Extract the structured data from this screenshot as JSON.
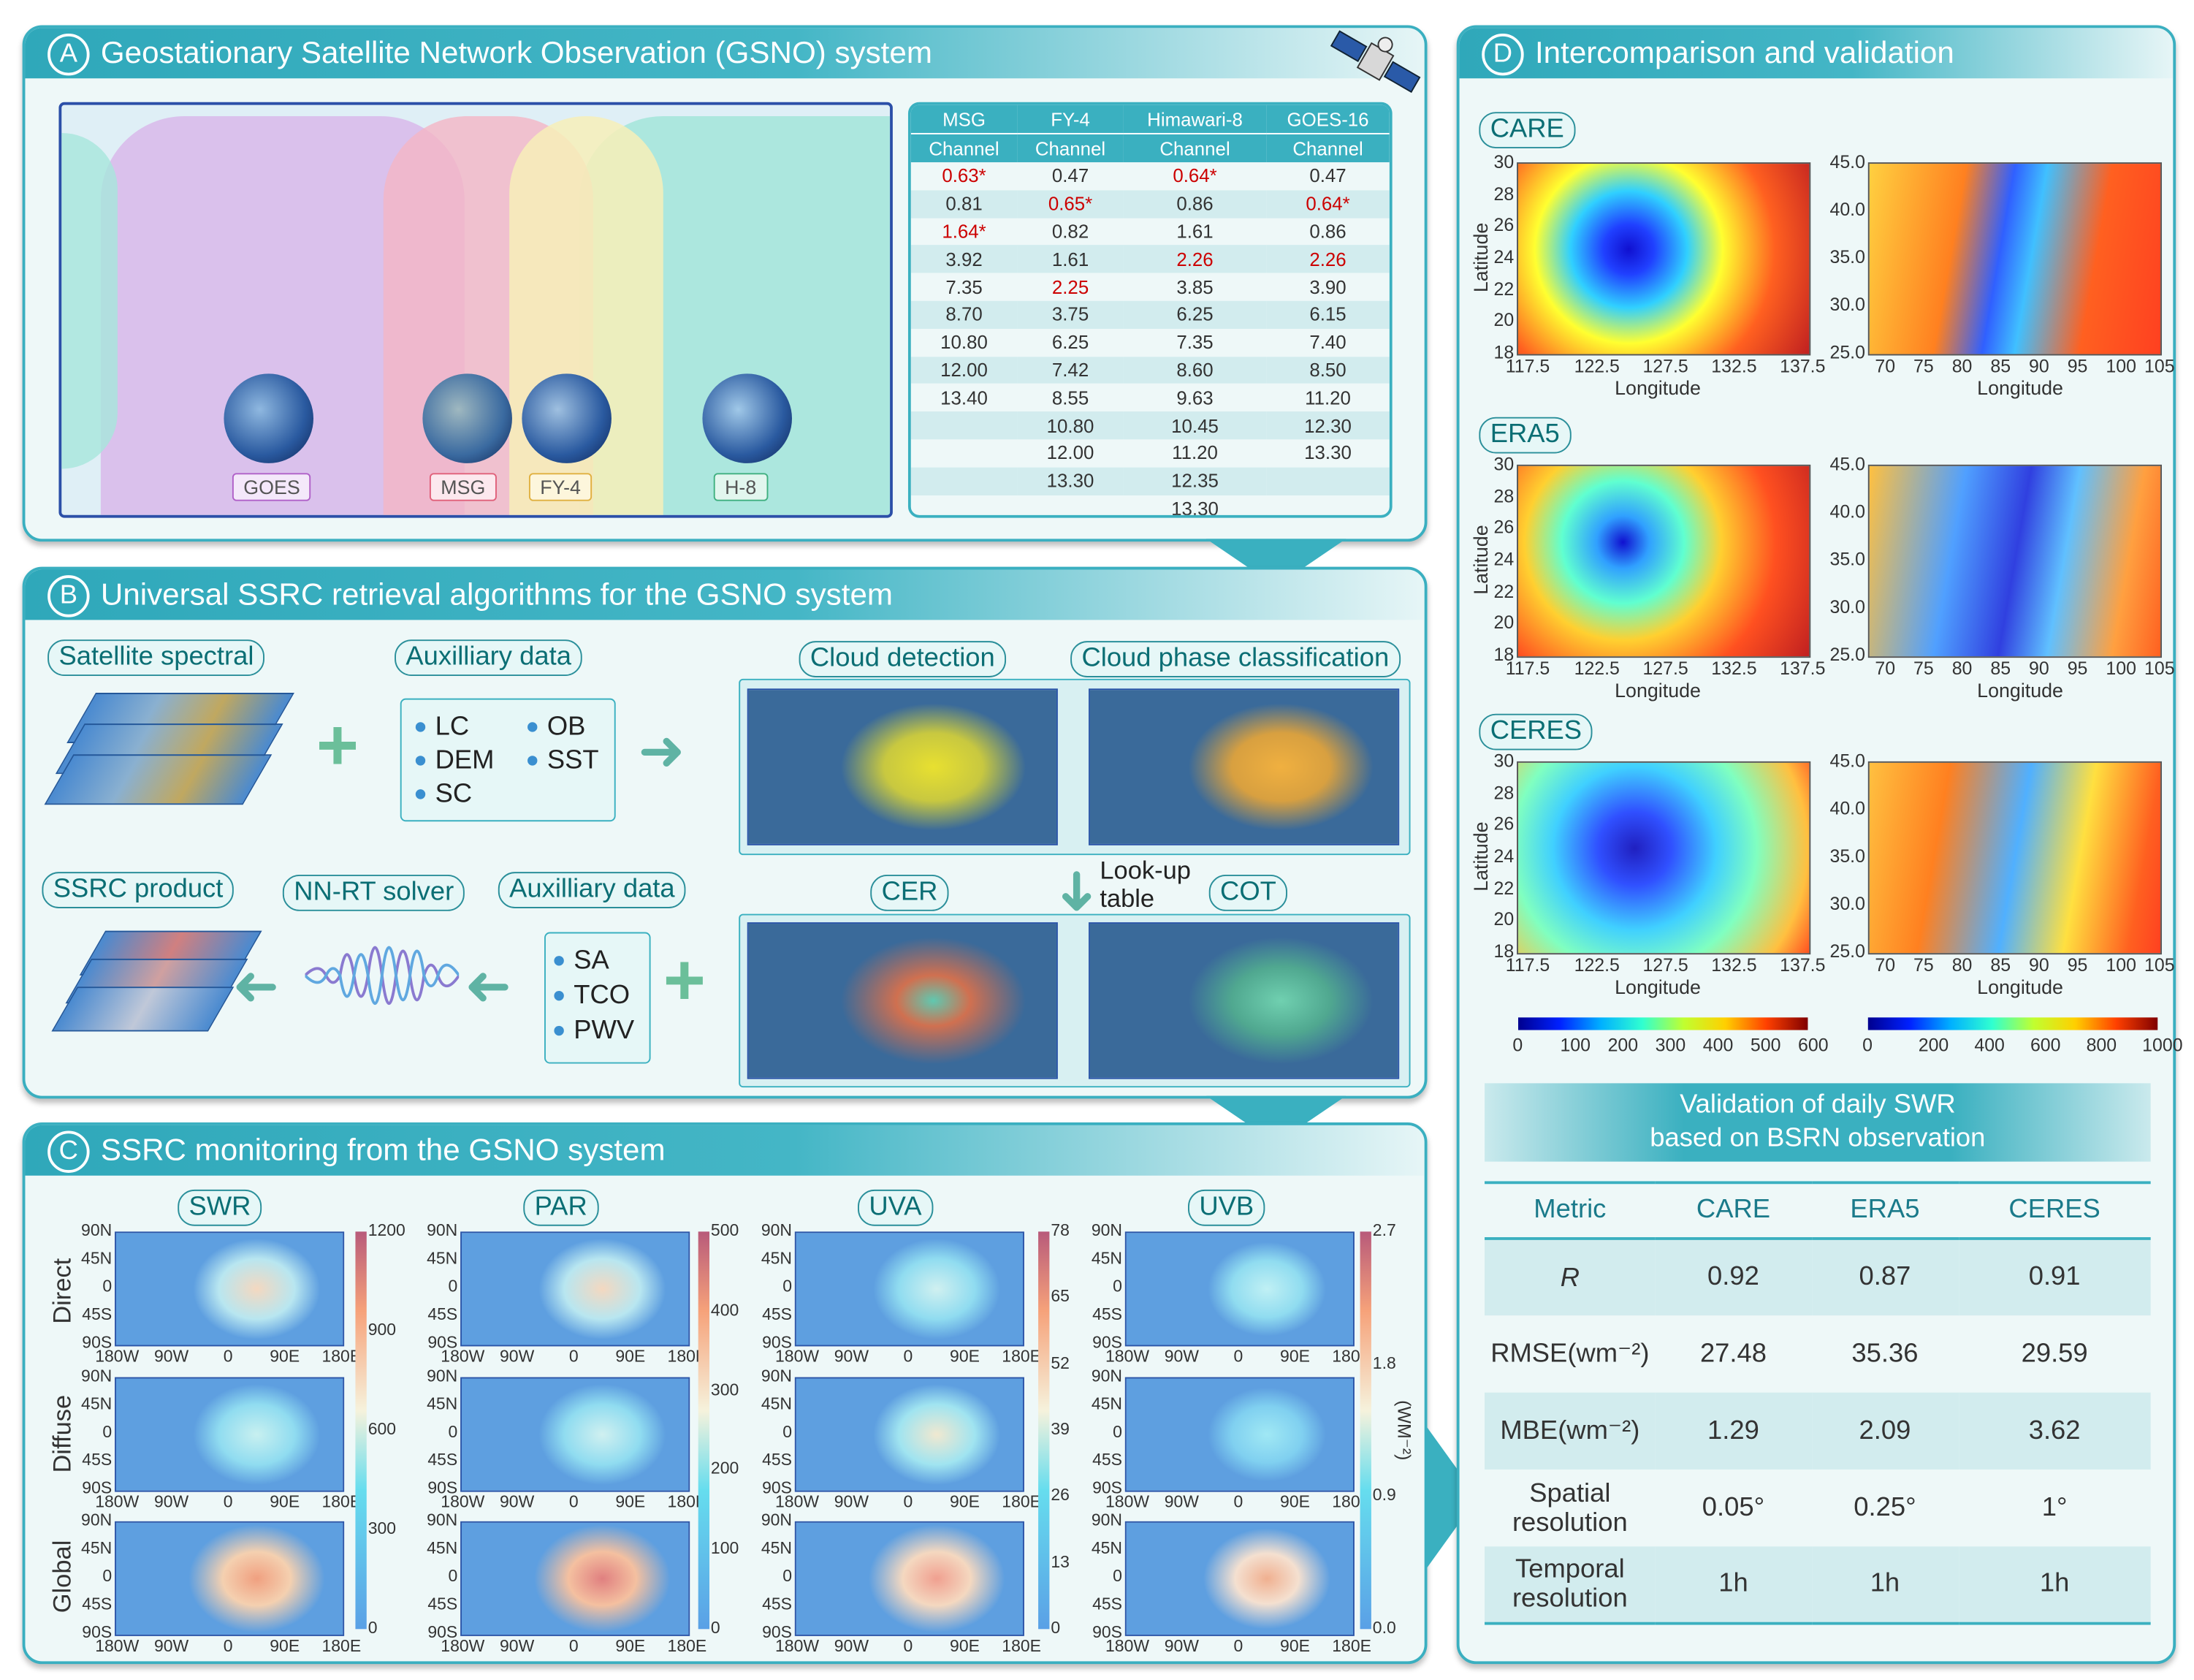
{
  "panel_a": {
    "letter": "A",
    "title": "Geostationary Satellite Network Observation (GSNO) system",
    "satellites": [
      "GOES",
      "MSG",
      "FY-4",
      "H-8"
    ],
    "coverage_colors": {
      "GOES": "#d9b8ea",
      "MSG": "#f4b5c6",
      "FY-4": "#f7efb8",
      "H-8": "#a6e6dc"
    },
    "table": {
      "columns": [
        "MSG",
        "FY-4",
        "Himawari-8",
        "GOES-16"
      ],
      "subheader": "Channel",
      "rows": [
        [
          {
            "v": "0.63*",
            "hl": true
          },
          {
            "v": "0.47"
          },
          {
            "v": "0.64*",
            "hl": true
          },
          {
            "v": "0.47"
          }
        ],
        [
          {
            "v": "0.81"
          },
          {
            "v": "0.65*",
            "hl": true
          },
          {
            "v": "0.86"
          },
          {
            "v": "0.64*",
            "hl": true
          }
        ],
        [
          {
            "v": "1.64*",
            "hl": true
          },
          {
            "v": "0.82"
          },
          {
            "v": "1.61"
          },
          {
            "v": "0.86"
          }
        ],
        [
          {
            "v": "3.92"
          },
          {
            "v": "1.61"
          },
          {
            "v": "2.26",
            "hl": true
          },
          {
            "v": "2.26",
            "hl": true
          }
        ],
        [
          {
            "v": "7.35"
          },
          {
            "v": "2.25",
            "hl": true
          },
          {
            "v": "3.85"
          },
          {
            "v": "3.90"
          }
        ],
        [
          {
            "v": "8.70"
          },
          {
            "v": "3.75"
          },
          {
            "v": "6.25"
          },
          {
            "v": "6.15"
          }
        ],
        [
          {
            "v": "10.80"
          },
          {
            "v": "6.25"
          },
          {
            "v": "7.35"
          },
          {
            "v": "7.40"
          }
        ],
        [
          {
            "v": "12.00"
          },
          {
            "v": "7.42"
          },
          {
            "v": "8.60"
          },
          {
            "v": "8.50"
          }
        ],
        [
          {
            "v": "13.40"
          },
          {
            "v": "8.55"
          },
          {
            "v": "9.63"
          },
          {
            "v": "11.20"
          }
        ],
        [
          {
            "v": ""
          },
          {
            "v": "10.80"
          },
          {
            "v": "10.45"
          },
          {
            "v": "12.30"
          }
        ],
        [
          {
            "v": ""
          },
          {
            "v": "12.00"
          },
          {
            "v": "11.20"
          },
          {
            "v": "13.30"
          }
        ],
        [
          {
            "v": ""
          },
          {
            "v": "13.30"
          },
          {
            "v": "12.35"
          },
          {
            "v": ""
          }
        ],
        [
          {
            "v": ""
          },
          {
            "v": ""
          },
          {
            "v": "13.30"
          },
          {
            "v": ""
          }
        ]
      ],
      "highlight_color": "#cc0000"
    }
  },
  "panel_b": {
    "letter": "B",
    "title": "Universal SSRC retrieval algorithms for the GSNO system",
    "satellite_spectral": "Satellite spectral",
    "aux_data_top": "Auxilliary data",
    "aux_items_top": [
      "LC",
      "OB",
      "DEM",
      "SST",
      "SC"
    ],
    "cloud_detection": "Cloud detection",
    "cloud_phase": "Cloud phase classification",
    "ssrc_product": "SSRC product",
    "nn_rt_solver": "NN-RT solver",
    "aux_data_bottom": "Auxilliary data",
    "aux_items_bottom": [
      "SA",
      "TCO",
      "PWV"
    ],
    "cer": "CER",
    "cot": "COT",
    "lookup_table": "Look-up table"
  },
  "panel_c": {
    "letter": "C",
    "title": "SSRC monitoring from the GSNO system",
    "variables": [
      {
        "name": "SWR",
        "colorbar_ticks": [
          "1200",
          "900",
          "600",
          "300",
          "0"
        ]
      },
      {
        "name": "PAR",
        "colorbar_ticks": [
          "500",
          "400",
          "300",
          "200",
          "100",
          "0"
        ]
      },
      {
        "name": "UVA",
        "colorbar_ticks": [
          "78",
          "65",
          "52",
          "39",
          "26",
          "13",
          "0"
        ]
      },
      {
        "name": "UVB",
        "colorbar_ticks": [
          "2.7",
          "1.8",
          "0.9",
          "0.0"
        ]
      }
    ],
    "rows": [
      "Direct",
      "Diffuse",
      "Global"
    ],
    "lat_ticks": [
      "90N",
      "45N",
      "0",
      "45S",
      "90S"
    ],
    "lon_ticks": [
      "180W",
      "90W",
      "0",
      "90E",
      "180E"
    ],
    "unit": "(WM⁻²)"
  },
  "panel_d": {
    "letter": "D",
    "title": "Intercomparison and validation",
    "products": [
      "CARE",
      "ERA5",
      "CERES"
    ],
    "left_plot": {
      "ylabel": "Latitude",
      "xlabel": "Longitude",
      "yticks": [
        "30",
        "28",
        "26",
        "24",
        "22",
        "20",
        "18"
      ],
      "xticks": [
        "117.5",
        "122.5",
        "127.5",
        "132.5",
        "137.5"
      ]
    },
    "right_plot": {
      "xlabel": "Longitude",
      "yticks": [
        "45.0",
        "40.0",
        "35.0",
        "30.0",
        "25.0"
      ],
      "xticks": [
        "70",
        "75",
        "80",
        "85",
        "90",
        "95",
        "100",
        "105"
      ]
    },
    "colorbar_left_ticks": [
      "0",
      "100",
      "200",
      "300",
      "400",
      "500",
      "600"
    ],
    "colorbar_right_ticks": [
      "0",
      "200",
      "400",
      "600",
      "800",
      "1000"
    ],
    "validation_title_1": "Validation of daily SWR",
    "validation_title_2": "based on BSRN observation",
    "validation": {
      "header": [
        "Metric",
        "CARE",
        "ERA5",
        "CERES"
      ],
      "rows": [
        [
          "R",
          "0.92",
          "0.87",
          "0.91"
        ],
        [
          "RMSE(wm⁻²)",
          "27.48",
          "35.36",
          "29.59"
        ],
        [
          "MBE(wm⁻²)",
          "1.29",
          "2.09",
          "3.62"
        ],
        [
          "Spatial resolution",
          "0.05°",
          "0.25°",
          "1°"
        ],
        [
          "Temporal resolution",
          "1h",
          "1h",
          "1h"
        ]
      ]
    }
  }
}
